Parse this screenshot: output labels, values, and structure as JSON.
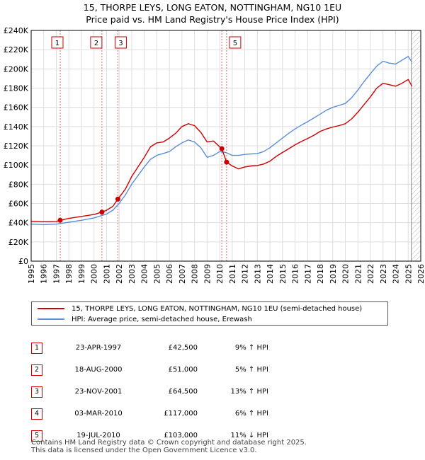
{
  "title_line1": "15, THORPE LEYS, LONG EATON, NOTTINGHAM, NG10 1EU",
  "title_line2": "Price paid vs. HM Land Registry's House Price Index (HPI)",
  "chart_data": {
    "type": "line",
    "title": "15, THORPE LEYS, LONG EATON, NOTTINGHAM, NG10 1EU",
    "subtitle": "Price paid vs. HM Land Registry's House Price Index (HPI)",
    "xlim": [
      1995,
      2026
    ],
    "ylim": [
      0,
      240000
    ],
    "x_ticks": [
      "1995",
      "1996",
      "1997",
      "1998",
      "1999",
      "2000",
      "2001",
      "2002",
      "2003",
      "2004",
      "2005",
      "2006",
      "2007",
      "2008",
      "2009",
      "2010",
      "2011",
      "2012",
      "2013",
      "2014",
      "2015",
      "2016",
      "2017",
      "2018",
      "2019",
      "2020",
      "2021",
      "2022",
      "2023",
      "2024",
      "2025",
      "2026"
    ],
    "y_ticks": [
      0,
      20000,
      40000,
      60000,
      80000,
      100000,
      120000,
      140000,
      160000,
      180000,
      200000,
      220000,
      240000
    ],
    "y_tick_labels": [
      "£0",
      "£20K",
      "£40K",
      "£60K",
      "£80K",
      "£100K",
      "£120K",
      "£140K",
      "£160K",
      "£180K",
      "£200K",
      "£220K",
      "£240K"
    ],
    "grid": true,
    "colors": {
      "price": "#cc0000",
      "hpi": "#5b8fd6",
      "marker_line": "#e06666",
      "grid": "#dddddd",
      "hatch": "#bbbbbb"
    },
    "series": [
      {
        "name": "15, THORPE LEYS, LONG EATON, NOTTINGHAM, NG10 1EU (semi-detached house)",
        "color": "#cc0000",
        "points": [
          [
            1995.0,
            41500
          ],
          [
            1996.0,
            41000
          ],
          [
            1997.0,
            41300
          ],
          [
            1997.31,
            42500
          ],
          [
            1998.0,
            44500
          ],
          [
            1999.0,
            46500
          ],
          [
            2000.0,
            48500
          ],
          [
            2000.63,
            51000
          ],
          [
            2001.0,
            53000
          ],
          [
            2001.5,
            57000
          ],
          [
            2001.9,
            64500
          ],
          [
            2002.5,
            75000
          ],
          [
            2003.0,
            88000
          ],
          [
            2003.5,
            98000
          ],
          [
            2004.0,
            108000
          ],
          [
            2004.5,
            119000
          ],
          [
            2005.0,
            123000
          ],
          [
            2005.5,
            124000
          ],
          [
            2006.0,
            128000
          ],
          [
            2006.5,
            133000
          ],
          [
            2007.0,
            140000
          ],
          [
            2007.5,
            143000
          ],
          [
            2008.0,
            141000
          ],
          [
            2008.5,
            134000
          ],
          [
            2009.0,
            124000
          ],
          [
            2009.5,
            125000
          ],
          [
            2010.17,
            117000
          ],
          [
            2010.55,
            103000
          ],
          [
            2011.0,
            99000
          ],
          [
            2011.5,
            96000
          ],
          [
            2012.0,
            98000
          ],
          [
            2012.5,
            99000
          ],
          [
            2013.0,
            99500
          ],
          [
            2013.5,
            101000
          ],
          [
            2014.0,
            104000
          ],
          [
            2014.5,
            109000
          ],
          [
            2015.0,
            113000
          ],
          [
            2015.5,
            117000
          ],
          [
            2016.0,
            121000
          ],
          [
            2016.5,
            124500
          ],
          [
            2017.0,
            127500
          ],
          [
            2017.5,
            131000
          ],
          [
            2018.0,
            135000
          ],
          [
            2018.5,
            137500
          ],
          [
            2019.0,
            139500
          ],
          [
            2019.5,
            141000
          ],
          [
            2020.0,
            143000
          ],
          [
            2020.5,
            148000
          ],
          [
            2021.0,
            155000
          ],
          [
            2021.5,
            163000
          ],
          [
            2022.0,
            171000
          ],
          [
            2022.5,
            180000
          ],
          [
            2023.0,
            185000
          ],
          [
            2023.5,
            183500
          ],
          [
            2024.0,
            182000
          ],
          [
            2024.5,
            185000
          ],
          [
            2025.0,
            189000
          ],
          [
            2025.3,
            182000
          ]
        ]
      },
      {
        "name": "HPI: Average price, semi-detached house, Erewash",
        "color": "#5b8fd6",
        "points": [
          [
            1995.0,
            38500
          ],
          [
            1996.0,
            38000
          ],
          [
            1997.0,
            38500
          ],
          [
            1998.0,
            40500
          ],
          [
            1999.0,
            42500
          ],
          [
            2000.0,
            45000
          ],
          [
            2001.0,
            49000
          ],
          [
            2001.5,
            53000
          ],
          [
            2002.0,
            60000
          ],
          [
            2002.5,
            69000
          ],
          [
            2003.0,
            80000
          ],
          [
            2003.5,
            89000
          ],
          [
            2004.0,
            98000
          ],
          [
            2004.5,
            106000
          ],
          [
            2005.0,
            110000
          ],
          [
            2005.5,
            112000
          ],
          [
            2006.0,
            114000
          ],
          [
            2006.5,
            119000
          ],
          [
            2007.0,
            123000
          ],
          [
            2007.5,
            126000
          ],
          [
            2008.0,
            124000
          ],
          [
            2008.5,
            118000
          ],
          [
            2009.0,
            108000
          ],
          [
            2009.5,
            110000
          ],
          [
            2010.0,
            114000
          ],
          [
            2010.5,
            113000
          ],
          [
            2011.0,
            110000
          ],
          [
            2011.5,
            110000
          ],
          [
            2012.0,
            111000
          ],
          [
            2012.5,
            111500
          ],
          [
            2013.0,
            112000
          ],
          [
            2013.5,
            114000
          ],
          [
            2014.0,
            118000
          ],
          [
            2014.5,
            123000
          ],
          [
            2015.0,
            128000
          ],
          [
            2015.5,
            133000
          ],
          [
            2016.0,
            137500
          ],
          [
            2016.5,
            141500
          ],
          [
            2017.0,
            145000
          ],
          [
            2017.5,
            149000
          ],
          [
            2018.0,
            153000
          ],
          [
            2018.5,
            157000
          ],
          [
            2019.0,
            160000
          ],
          [
            2019.5,
            162000
          ],
          [
            2020.0,
            164000
          ],
          [
            2020.5,
            170000
          ],
          [
            2021.0,
            178000
          ],
          [
            2021.5,
            187000
          ],
          [
            2022.0,
            195000
          ],
          [
            2022.5,
            203000
          ],
          [
            2023.0,
            208000
          ],
          [
            2023.5,
            206000
          ],
          [
            2024.0,
            205000
          ],
          [
            2024.5,
            209000
          ],
          [
            2025.0,
            213000
          ],
          [
            2025.3,
            207000
          ]
        ]
      }
    ],
    "sale_markers": [
      {
        "label": "1",
        "x": 1997.31,
        "y": 42500
      },
      {
        "label": "2",
        "x": 2000.63,
        "y": 51000
      },
      {
        "label": "3",
        "x": 2001.9,
        "y": 64500
      },
      {
        "label": "4",
        "x": 2010.17,
        "y": 117000
      },
      {
        "label": "5",
        "x": 2010.55,
        "y": 103000
      }
    ],
    "hatched_region": [
      2025.25,
      2026
    ]
  },
  "legend": {
    "price_label": "15, THORPE LEYS, LONG EATON, NOTTINGHAM, NG10 1EU (semi-detached house)",
    "hpi_label": "HPI: Average price, semi-detached house, Erewash"
  },
  "sales": [
    {
      "num": "1",
      "date": "23-APR-1997",
      "price": "£42,500",
      "pct": "9% ↑ HPI"
    },
    {
      "num": "2",
      "date": "18-AUG-2000",
      "price": "£51,000",
      "pct": "5% ↑ HPI"
    },
    {
      "num": "3",
      "date": "23-NOV-2001",
      "price": "£64,500",
      "pct": "13% ↑ HPI"
    },
    {
      "num": "4",
      "date": "03-MAR-2010",
      "price": "£117,000",
      "pct": "6% ↑ HPI"
    },
    {
      "num": "5",
      "date": "19-JUL-2010",
      "price": "£103,000",
      "pct": "11% ↓ HPI"
    }
  ],
  "footer": {
    "line1": "Contains HM Land Registry data © Crown copyright and database right 2025.",
    "line2": "This data is licensed under the Open Government Licence v3.0."
  }
}
